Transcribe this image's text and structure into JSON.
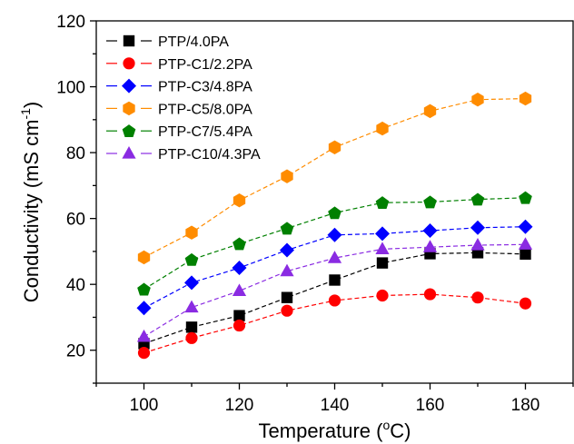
{
  "chart_data": {
    "type": "line",
    "title": "",
    "xlabel": "Temperature (oC)",
    "xlabel_parts": [
      "Temperature (",
      "o",
      "C)"
    ],
    "ylabel": "Conductivity (mS cm-1)",
    "ylabel_parts": [
      "Conductivity (mS cm",
      "-1",
      ")"
    ],
    "xlim": [
      90,
      190
    ],
    "ylim": [
      10,
      120
    ],
    "x_ticks": [
      100,
      120,
      140,
      160,
      180
    ],
    "y_ticks": [
      20,
      40,
      60,
      80,
      100,
      120
    ],
    "grid": false,
    "legend_position": "top-left",
    "x": [
      100,
      110,
      120,
      130,
      140,
      150,
      160,
      170,
      180
    ],
    "series": [
      {
        "name": "PTP/4.0PA",
        "color": "#000000",
        "marker": "square",
        "values": [
          22.0,
          27.0,
          30.5,
          36.0,
          41.3,
          46.5,
          49.3,
          49.6,
          49.2
        ]
      },
      {
        "name": "PTP-C1/2.2PA",
        "color": "#ff0000",
        "marker": "circle",
        "values": [
          19.2,
          23.7,
          27.5,
          32.0,
          35.1,
          36.6,
          37.0,
          36.0,
          34.2
        ]
      },
      {
        "name": "PTP-C3/4.8PA",
        "color": "#0000ff",
        "marker": "diamond",
        "values": [
          32.8,
          40.5,
          45.0,
          50.4,
          55.0,
          55.4,
          56.3,
          57.2,
          57.5
        ]
      },
      {
        "name": "PTP-C5/8.0PA",
        "color": "#ff8c00",
        "marker": "hexagon",
        "values": [
          48.2,
          55.7,
          65.5,
          72.8,
          81.6,
          87.3,
          92.6,
          96.1,
          96.4
        ]
      },
      {
        "name": "PTP-C7/5.4PA",
        "color": "#008000",
        "marker": "pentagon",
        "values": [
          38.5,
          47.5,
          52.3,
          57.0,
          61.7,
          64.8,
          65.0,
          65.8,
          66.3
        ]
      },
      {
        "name": "PTP-C10/4.3PA",
        "color": "#8a2be2",
        "marker": "triangle",
        "values": [
          24.1,
          33.0,
          38.0,
          44.0,
          48.0,
          50.7,
          51.3,
          51.9,
          52.1
        ]
      }
    ]
  }
}
